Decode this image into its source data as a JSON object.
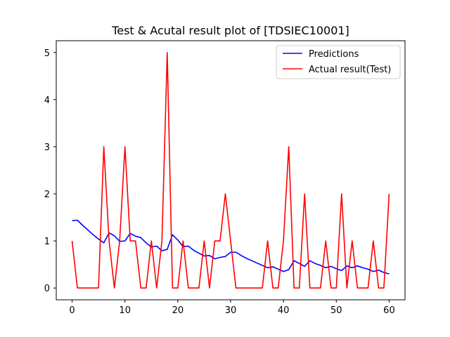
{
  "chart_data": {
    "type": "line",
    "title": "Test & Acutal result plot of [TDSIEC10001]",
    "xlabel": "",
    "ylabel": "",
    "xlim": [
      -3,
      63
    ],
    "ylim": [
      -0.25,
      5.25
    ],
    "xticks": [
      0,
      10,
      20,
      30,
      40,
      50,
      60
    ],
    "yticks": [
      0,
      1,
      2,
      3,
      4,
      5
    ],
    "grid": false,
    "legend_position": "top-right",
    "x": [
      0,
      1,
      2,
      3,
      4,
      5,
      6,
      7,
      8,
      9,
      10,
      11,
      12,
      13,
      14,
      15,
      16,
      17,
      18,
      19,
      20,
      21,
      22,
      23,
      24,
      25,
      26,
      27,
      28,
      29,
      30,
      31,
      32,
      33,
      34,
      35,
      36,
      37,
      38,
      39,
      40,
      41,
      42,
      43,
      44,
      45,
      46,
      47,
      48,
      49,
      50,
      51,
      52,
      53,
      54,
      55,
      56,
      57,
      58,
      59,
      60
    ],
    "series": [
      {
        "name": "Predictions",
        "color": "#0000ff",
        "values": [
          1.43,
          1.44,
          1.33,
          1.23,
          1.13,
          1.04,
          0.96,
          1.17,
          1.11,
          0.99,
          1.0,
          1.16,
          1.1,
          1.07,
          0.96,
          0.87,
          0.89,
          0.79,
          0.82,
          1.13,
          1.02,
          0.88,
          0.89,
          0.8,
          0.74,
          0.68,
          0.69,
          0.62,
          0.65,
          0.67,
          0.76,
          0.76,
          0.69,
          0.63,
          0.58,
          0.53,
          0.48,
          0.43,
          0.45,
          0.4,
          0.35,
          0.39,
          0.58,
          0.52,
          0.46,
          0.58,
          0.52,
          0.48,
          0.43,
          0.46,
          0.41,
          0.37,
          0.47,
          0.43,
          0.47,
          0.43,
          0.4,
          0.35,
          0.38,
          0.33,
          0.3
        ]
      },
      {
        "name": "Actual result(Test)",
        "color": "#ff0000",
        "values": [
          1,
          0,
          0,
          0,
          0,
          0,
          3,
          1,
          0,
          1,
          3,
          1,
          1,
          0,
          0,
          1,
          0,
          1,
          5,
          0,
          0,
          1,
          0,
          0,
          0,
          1,
          0,
          1,
          1,
          2,
          1,
          0,
          0,
          0,
          0,
          0,
          0,
          1,
          0,
          0,
          1,
          3,
          0,
          0,
          2,
          0,
          0,
          0,
          1,
          0,
          0,
          2,
          0,
          1,
          0,
          0,
          0,
          1,
          0,
          0,
          2
        ]
      }
    ]
  }
}
